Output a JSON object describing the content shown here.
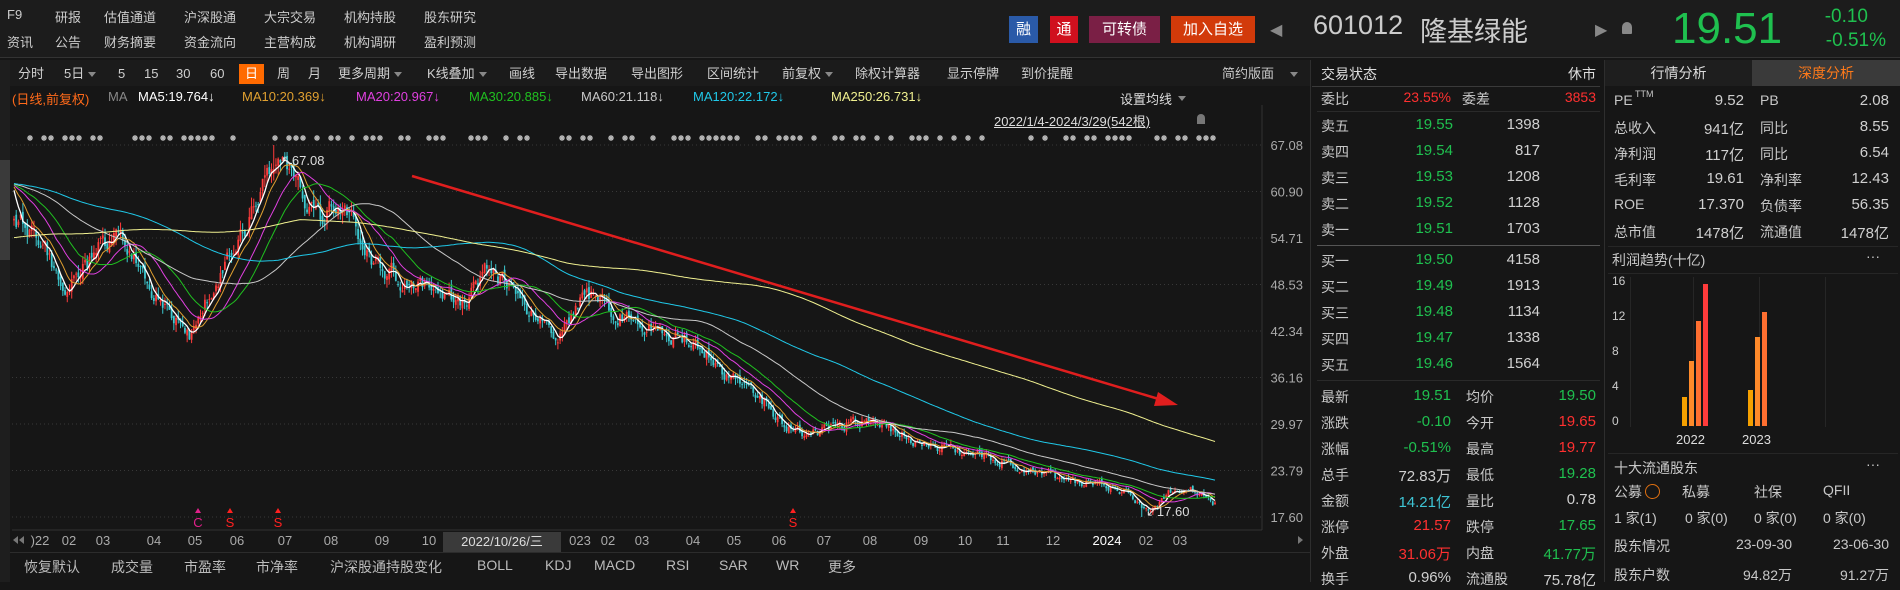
{
  "topnav": {
    "row1": [
      "F9",
      "研报",
      "估值通道",
      "沪深股通",
      "大宗交易",
      "机构持股",
      "股东研究"
    ],
    "row2": [
      "资讯",
      "公告",
      "财务摘要",
      "资金流向",
      "主营构成",
      "机构调研",
      "盈利预测"
    ]
  },
  "header": {
    "badges": [
      {
        "label": "融",
        "color": "#2a5aa8"
      },
      {
        "label": "通",
        "color": "#d0101e"
      },
      {
        "label": "可转债",
        "color": "#7a1f45"
      },
      {
        "label": "加入自选",
        "color": "#d23a0a"
      }
    ],
    "code": "601012",
    "name": "隆基绿能",
    "price": "19.51",
    "change": "-0.10",
    "change_pct": "-0.51%",
    "down_color": "#1fc04f"
  },
  "toolbar": {
    "items": [
      {
        "label": "分时"
      },
      {
        "label": "5日",
        "dropdown": true
      },
      {
        "label": "5"
      },
      {
        "label": "15"
      },
      {
        "label": "30"
      },
      {
        "label": "60"
      },
      {
        "label": "日",
        "active": true
      },
      {
        "label": "周"
      },
      {
        "label": "月"
      },
      {
        "label": "更多周期",
        "dropdown": true
      },
      {
        "label": "K线叠加",
        "dropdown": true
      },
      {
        "label": "画线"
      },
      {
        "label": "导出数据"
      },
      {
        "label": "导出图形"
      },
      {
        "label": "区间统计"
      },
      {
        "label": "前复权",
        "dropdown": true
      },
      {
        "label": "除权计算器"
      },
      {
        "label": "显示停牌"
      },
      {
        "label": "到价提醒"
      }
    ],
    "layout_button": "简约版面",
    "active_color": "#ff6a00"
  },
  "ma_legend": {
    "mode": "(日线,前复权)",
    "prefix": "MA",
    "items": [
      {
        "label": "MA5:19.764↓",
        "color": "#ffffff"
      },
      {
        "label": "MA10:20.369↓",
        "color": "#e0a030"
      },
      {
        "label": "MA20:20.967↓",
        "color": "#e040e0"
      },
      {
        "label": "MA30:20.885↓",
        "color": "#20c020"
      },
      {
        "label": "MA60:21.118↓",
        "color": "#c8c8c8"
      },
      {
        "label": "MA120:22.172↓",
        "color": "#20c8e8"
      },
      {
        "label": "MA250:26.731↓",
        "color": "#f0f090"
      }
    ]
  },
  "chart": {
    "set_ma": "设置均线",
    "range": "2022/1/4-2024/3/29(542根)",
    "high_label": "↖67.08",
    "low_label": "↙17.60",
    "cursor_date": "2022/10/26/三"
  },
  "chart_data": {
    "type": "candlestick",
    "period": "daily",
    "adjust": "前复权",
    "y_ticks": [
      "67.08",
      "60.90",
      "54.71",
      "48.53",
      "42.34",
      "36.16",
      "29.97",
      "23.79",
      "17.60"
    ],
    "ylim": [
      17.6,
      67.08
    ],
    "x_ticks": [
      ")22",
      "02",
      "03",
      "04",
      "05",
      "06",
      "07",
      "08",
      "09",
      "10",
      "023",
      "02",
      "03",
      "04",
      "05",
      "06",
      "07",
      "08",
      "09",
      "10",
      "11",
      "12",
      "2024",
      "02",
      "03"
    ],
    "high": 67.08,
    "low": 17.6,
    "bars": 542,
    "up_color": "#ff3b3b",
    "down_color": "#3cc8d0",
    "trend_arrow": {
      "color": "#e01e1e",
      "from": "2022-09",
      "to": "2024-03",
      "direction": "down"
    },
    "events": [
      {
        "label": "C",
        "date": "2022-05",
        "color": "#e0208a"
      },
      {
        "label": "S",
        "date": "2022-06",
        "color": "#ff2020"
      },
      {
        "label": "S",
        "date": "2022-07",
        "color": "#ff2020"
      },
      {
        "label": "S",
        "date": "2023-06",
        "color": "#ff2020"
      }
    ],
    "close_keypoints": [
      [
        "2022-01-04",
        57.5
      ],
      [
        "2022-01-20",
        53
      ],
      [
        "2022-01-28",
        47.5
      ],
      [
        "2022-02-15",
        51
      ],
      [
        "2022-03-10",
        56
      ],
      [
        "2022-03-25",
        50
      ],
      [
        "2022-04-15",
        44
      ],
      [
        "2022-04-27",
        41.5
      ],
      [
        "2022-05-12",
        48
      ],
      [
        "2022-05-25",
        52
      ],
      [
        "2022-06-10",
        58
      ],
      [
        "2022-06-28",
        66
      ],
      [
        "2022-07-08",
        61
      ],
      [
        "2022-07-25",
        58
      ],
      [
        "2022-08-12",
        59
      ],
      [
        "2022-08-25",
        52
      ],
      [
        "2022-09-15",
        49
      ],
      [
        "2022-10-11",
        47.5
      ],
      [
        "2022-10-26",
        46
      ],
      [
        "2022-11-10",
        50
      ],
      [
        "2022-11-25",
        49
      ],
      [
        "2022-12-12",
        44
      ],
      [
        "2022-12-26",
        41.5
      ],
      [
        "2023-01-16",
        47.5
      ],
      [
        "2023-02-10",
        45
      ],
      [
        "2023-03-10",
        43
      ],
      [
        "2023-04-10",
        40
      ],
      [
        "2023-04-25",
        37
      ],
      [
        "2023-05-15",
        34.5
      ],
      [
        "2023-06-05",
        30
      ],
      [
        "2023-06-20",
        28
      ],
      [
        "2023-07-10",
        30
      ],
      [
        "2023-08-01",
        30.5
      ],
      [
        "2023-08-25",
        28
      ],
      [
        "2023-09-15",
        27
      ],
      [
        "2023-10-15",
        26
      ],
      [
        "2023-11-15",
        24.3
      ],
      [
        "2023-12-10",
        22
      ],
      [
        "2023-12-28",
        22.3
      ],
      [
        "2024-01-15",
        21
      ],
      [
        "2024-02-05",
        17.9
      ],
      [
        "2024-02-20",
        20.5
      ],
      [
        "2024-03-10",
        21.3
      ],
      [
        "2024-03-29",
        19.51
      ]
    ],
    "ma_end": {
      "MA5": 19.764,
      "MA10": 20.369,
      "MA20": 20.967,
      "MA30": 20.885,
      "MA60": 21.118,
      "MA120": 22.172,
      "MA250": 26.731
    }
  },
  "bottom_tabs": [
    "恢复默认",
    "成交量",
    "市盈率",
    "市净率",
    "沪深股通持股变化",
    "BOLL",
    "KDJ",
    "MACD",
    "RSI",
    "SAR",
    "WR",
    "更多"
  ],
  "order_book": {
    "title": "交易状态",
    "status": "休市",
    "weibi_label": "委比",
    "weibi": "23.55%",
    "weicha_label": "委差",
    "weicha": "3853",
    "asks": [
      {
        "label": "卖五",
        "price": "19.55",
        "vol": "1398"
      },
      {
        "label": "卖四",
        "price": "19.54",
        "vol": "817"
      },
      {
        "label": "卖三",
        "price": "19.53",
        "vol": "1208"
      },
      {
        "label": "卖二",
        "price": "19.52",
        "vol": "1128"
      },
      {
        "label": "卖一",
        "price": "19.51",
        "vol": "1703"
      }
    ],
    "bids": [
      {
        "label": "买一",
        "price": "19.50",
        "vol": "4158"
      },
      {
        "label": "买二",
        "price": "19.49",
        "vol": "1913"
      },
      {
        "label": "买三",
        "price": "19.48",
        "vol": "1134"
      },
      {
        "label": "买四",
        "price": "19.47",
        "vol": "1338"
      },
      {
        "label": "买五",
        "price": "19.46",
        "vol": "1564"
      }
    ],
    "stats": [
      {
        "l1": "最新",
        "v1": "19.51",
        "c1": "#1fc04f",
        "l2": "均价",
        "v2": "19.50",
        "c2": "#1fc04f"
      },
      {
        "l1": "涨跌",
        "v1": "-0.10",
        "c1": "#1fc04f",
        "l2": "今开",
        "v2": "19.65",
        "c2": "#ff3030"
      },
      {
        "l1": "涨幅",
        "v1": "-0.51%",
        "c1": "#1fc04f",
        "l2": "最高",
        "v2": "19.77",
        "c2": "#ff3030"
      },
      {
        "l1": "总手",
        "v1": "72.83万",
        "c1": "#d0d0d0",
        "l2": "最低",
        "v2": "19.28",
        "c2": "#1fc04f"
      },
      {
        "l1": "金额",
        "v1": "14.21亿",
        "c1": "#3ec5d5",
        "l2": "量比",
        "v2": "0.78",
        "c2": "#d0d0d0"
      },
      {
        "l1": "涨停",
        "v1": "21.57",
        "c1": "#ff3030",
        "l2": "跌停",
        "v2": "17.65",
        "c2": "#1fc04f"
      },
      {
        "l1": "外盘",
        "v1": "31.06万",
        "c1": "#ff3030",
        "l2": "内盘",
        "v2": "41.77万",
        "c2": "#1fc04f"
      },
      {
        "l1": "换手",
        "v1": "0.96%",
        "c1": "#d0d0d0",
        "l2": "流通股",
        "v2": "75.78亿",
        "c2": "#d0d0d0"
      }
    ]
  },
  "analysis": {
    "tabs": [
      "行情分析",
      "深度分析"
    ],
    "metrics": [
      {
        "l1": "PE",
        "sup": "TTM",
        "v1": "9.52",
        "l2": "PB",
        "v2": "2.08"
      },
      {
        "l1": "总收入",
        "v1": "941亿",
        "l2": "同比",
        "v2": "8.55"
      },
      {
        "l1": "净利润",
        "v1": "117亿",
        "l2": "同比",
        "v2": "6.54"
      },
      {
        "l1": "毛利率",
        "v1": "19.61",
        "l2": "净利率",
        "v2": "12.43"
      },
      {
        "l1": "ROE",
        "v1": "17.370",
        "l2": "负债率",
        "v2": "56.35"
      },
      {
        "l1": "总市值",
        "v1": "1478亿",
        "l2": "流通值",
        "v2": "1478亿"
      }
    ],
    "profit": {
      "title": "利润趋势(十亿)",
      "more": "···",
      "y_ticks": [
        "16",
        "12",
        "8",
        "4",
        "0"
      ],
      "categories": [
        "2022",
        "2023"
      ],
      "series": [
        [
          3.3,
          7.4,
          12.0,
          16.2
        ],
        [
          4.1,
          10.2,
          13.0
        ]
      ],
      "colors": [
        "#f5a000",
        "#ff8a2a",
        "#ff6f30",
        "#ff3b3b"
      ]
    },
    "holders": {
      "title": "十大流通股东",
      "more": "···",
      "tabs": [
        "公募",
        "私募",
        "社保",
        "QFII"
      ],
      "counts": [
        "1 家(1)",
        "0 家(0)",
        "0 家(0)",
        "0 家(0)"
      ],
      "situation_label": "股东情况",
      "dates": [
        "23-09-30",
        "23-06-30"
      ],
      "count_label": "股东户数",
      "holders_count": [
        "94.82万",
        "91.27万"
      ]
    }
  }
}
